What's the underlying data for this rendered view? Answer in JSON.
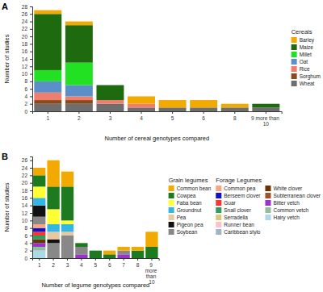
{
  "chart_data": [
    {
      "type": "bar",
      "title": "A",
      "stacked": true,
      "legend": "right",
      "x_label": "Number of cereal genotypes compared",
      "y_label": "Number of studies",
      "categories": [
        "1",
        "2",
        "3",
        "4",
        "5",
        "6",
        "8",
        "9 more than 10"
      ],
      "ylim": [
        0,
        28
      ],
      "yticks": [
        0,
        2,
        4,
        6,
        8,
        10,
        12,
        14,
        16,
        18,
        20,
        22,
        24,
        26,
        28
      ],
      "legend_groups": [
        {
          "title": "Cereals",
          "series": [
            {
              "name": "Barley",
              "color": "#f2a900",
              "values": [
                1,
                1,
                0,
                2,
                2,
                2,
                1,
                0
              ]
            },
            {
              "name": "Maize",
              "color": "#1e6b0f",
              "values": [
                15,
                10,
                4,
                0,
                0,
                0,
                0,
                1
              ]
            },
            {
              "name": "Millet",
              "color": "#22e022",
              "values": [
                3,
                6,
                0,
                0,
                0,
                0,
                0,
                0
              ]
            },
            {
              "name": "Oat",
              "color": "#5b8fc7",
              "values": [
                3,
                3,
                0,
                0,
                0,
                0,
                0,
                0
              ]
            },
            {
              "name": "Rice",
              "color": "#f07e6e",
              "values": [
                2,
                1,
                1,
                1,
                0,
                0,
                0,
                0
              ]
            },
            {
              "name": "Sorghum",
              "color": "#8b4a1c",
              "values": [
                1,
                1,
                0,
                0,
                0,
                0,
                0,
                0
              ]
            },
            {
              "name": "Wheat",
              "color": "#6e6e6e",
              "values": [
                2,
                2,
                2,
                1,
                1,
                1,
                1,
                1
              ]
            }
          ]
        }
      ]
    },
    {
      "type": "bar",
      "title": "B",
      "stacked": true,
      "legend": "right",
      "x_label": "Number of legume genotypes compared",
      "y_label": "Number of studies",
      "categories": [
        "1",
        "2",
        "3",
        "4",
        "5",
        "6",
        "7",
        "8",
        "9 more than 10"
      ],
      "ylim": [
        0,
        27
      ],
      "yticks": [
        0,
        2,
        4,
        6,
        8,
        10,
        12,
        14,
        16,
        18,
        20,
        22,
        24,
        26
      ],
      "legend_groups": [
        {
          "title": "Grain legumes",
          "series": [
            {
              "name": "Common bean",
              "color": "#f2a900",
              "values": [
                2,
                7,
                4,
                0,
                0,
                1,
                1,
                1,
                4
              ]
            },
            {
              "name": "Cowpea",
              "color": "#1e7a1e",
              "values": [
                3,
                6,
                9,
                1,
                2,
                1,
                0,
                2,
                3
              ]
            },
            {
              "name": "Faba bean",
              "color": "#ffff33",
              "values": [
                3,
                4,
                1,
                0,
                0,
                0,
                0,
                0,
                0
              ]
            },
            {
              "name": "Groundnut",
              "color": "#33b5e5",
              "values": [
                2,
                2,
                2,
                0,
                0,
                0,
                0,
                0,
                0
              ]
            },
            {
              "name": "Pea",
              "color": "#e8c8a0",
              "values": [
                0,
                2,
                1,
                0,
                0,
                0,
                0,
                0,
                0
              ]
            },
            {
              "name": "Pigeon pea",
              "color": "#111111",
              "values": [
                3,
                1,
                0,
                0,
                0,
                0,
                0,
                0,
                0
              ]
            },
            {
              "name": "Soybean",
              "color": "#888888",
              "values": [
                2,
                4,
                6,
                2,
                0,
                0,
                1,
                0,
                0
              ]
            }
          ]
        },
        {
          "title": "Forage Legumes",
          "series": [
            {
              "name": "Common pea",
              "color": "#f4a582",
              "values": [
                1,
                0,
                0,
                0,
                0,
                0,
                0,
                0,
                0
              ]
            },
            {
              "name": "Berseem clover",
              "color": "#1010c8",
              "values": [
                1,
                0,
                0,
                0,
                0,
                0,
                0,
                0,
                0
              ]
            },
            {
              "name": "Guar",
              "color": "#ff3333",
              "values": [
                1,
                0,
                0,
                0,
                0,
                0,
                0,
                0,
                0
              ]
            },
            {
              "name": "Snail clover",
              "color": "#2e9e5b",
              "values": [
                1,
                0,
                0,
                0,
                0,
                0,
                0,
                0,
                0
              ]
            },
            {
              "name": "Serradella",
              "color": "#d8c877",
              "values": [
                0,
                0,
                0,
                0,
                0,
                0,
                0,
                0,
                0
              ]
            },
            {
              "name": "Runner bean",
              "color": "#ffc0cb",
              "values": [
                0,
                0,
                0,
                0,
                0,
                0,
                0,
                0,
                0
              ]
            },
            {
              "name": "Caribbean stylo",
              "color": "#a0b4c8",
              "values": [
                0,
                0,
                0,
                0,
                0,
                0,
                0,
                0,
                0
              ]
            },
            {
              "name": "White clover",
              "color": "#6b3300",
              "values": [
                1,
                0,
                0,
                0,
                0,
                0,
                0,
                0,
                0
              ]
            },
            {
              "name": "Subterranean clover",
              "color": "#a0522d",
              "values": [
                0,
                0,
                0,
                0,
                0,
                0,
                0,
                0,
                0
              ]
            },
            {
              "name": "Bitter vetch",
              "color": "#9933cc",
              "values": [
                1,
                0,
                0,
                1,
                0,
                0,
                1,
                0,
                0
              ]
            },
            {
              "name": "Common vetch",
              "color": "#8fbf9f",
              "values": [
                1,
                0,
                0,
                0,
                0,
                0,
                0,
                0,
                0
              ]
            },
            {
              "name": "Hairy vetch",
              "color": "#add8e6",
              "values": [
                2,
                0,
                0,
                0,
                0,
                0,
                0,
                0,
                0
              ]
            }
          ]
        }
      ]
    }
  ]
}
